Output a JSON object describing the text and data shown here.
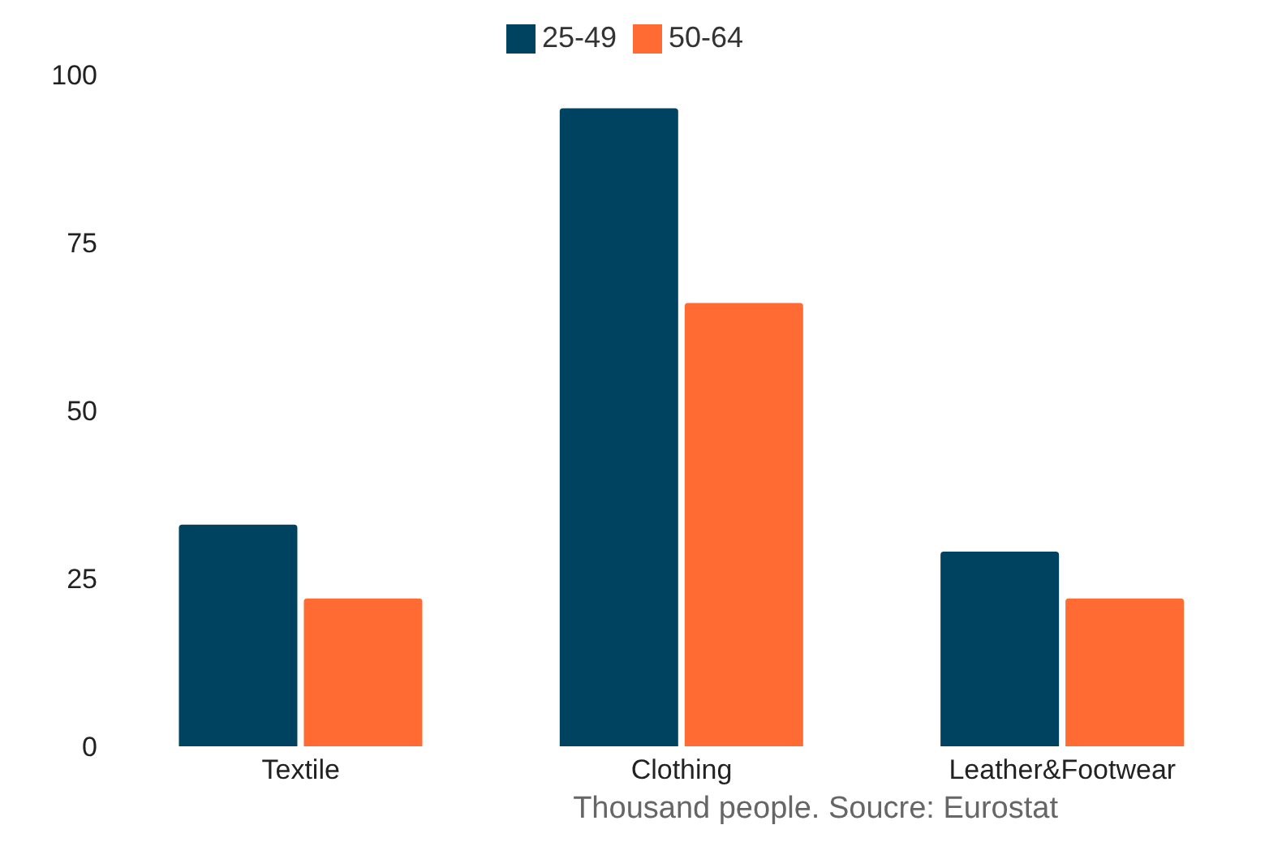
{
  "chart_data": {
    "type": "bar",
    "categories": [
      "Textile",
      "Clothing",
      "Leather&Footwear"
    ],
    "series": [
      {
        "name": "25-49",
        "color": "#004360",
        "values": [
          33,
          95,
          29
        ]
      },
      {
        "name": "50-64",
        "color": "#ff6b33",
        "values": [
          22,
          66,
          22
        ]
      }
    ],
    "ylim": [
      0,
      100
    ],
    "yticks": [
      0,
      25,
      50,
      75,
      100
    ],
    "grid": false,
    "legend": "top",
    "annotations": [
      "Thousand people. Soucre: Eurostat"
    ]
  }
}
